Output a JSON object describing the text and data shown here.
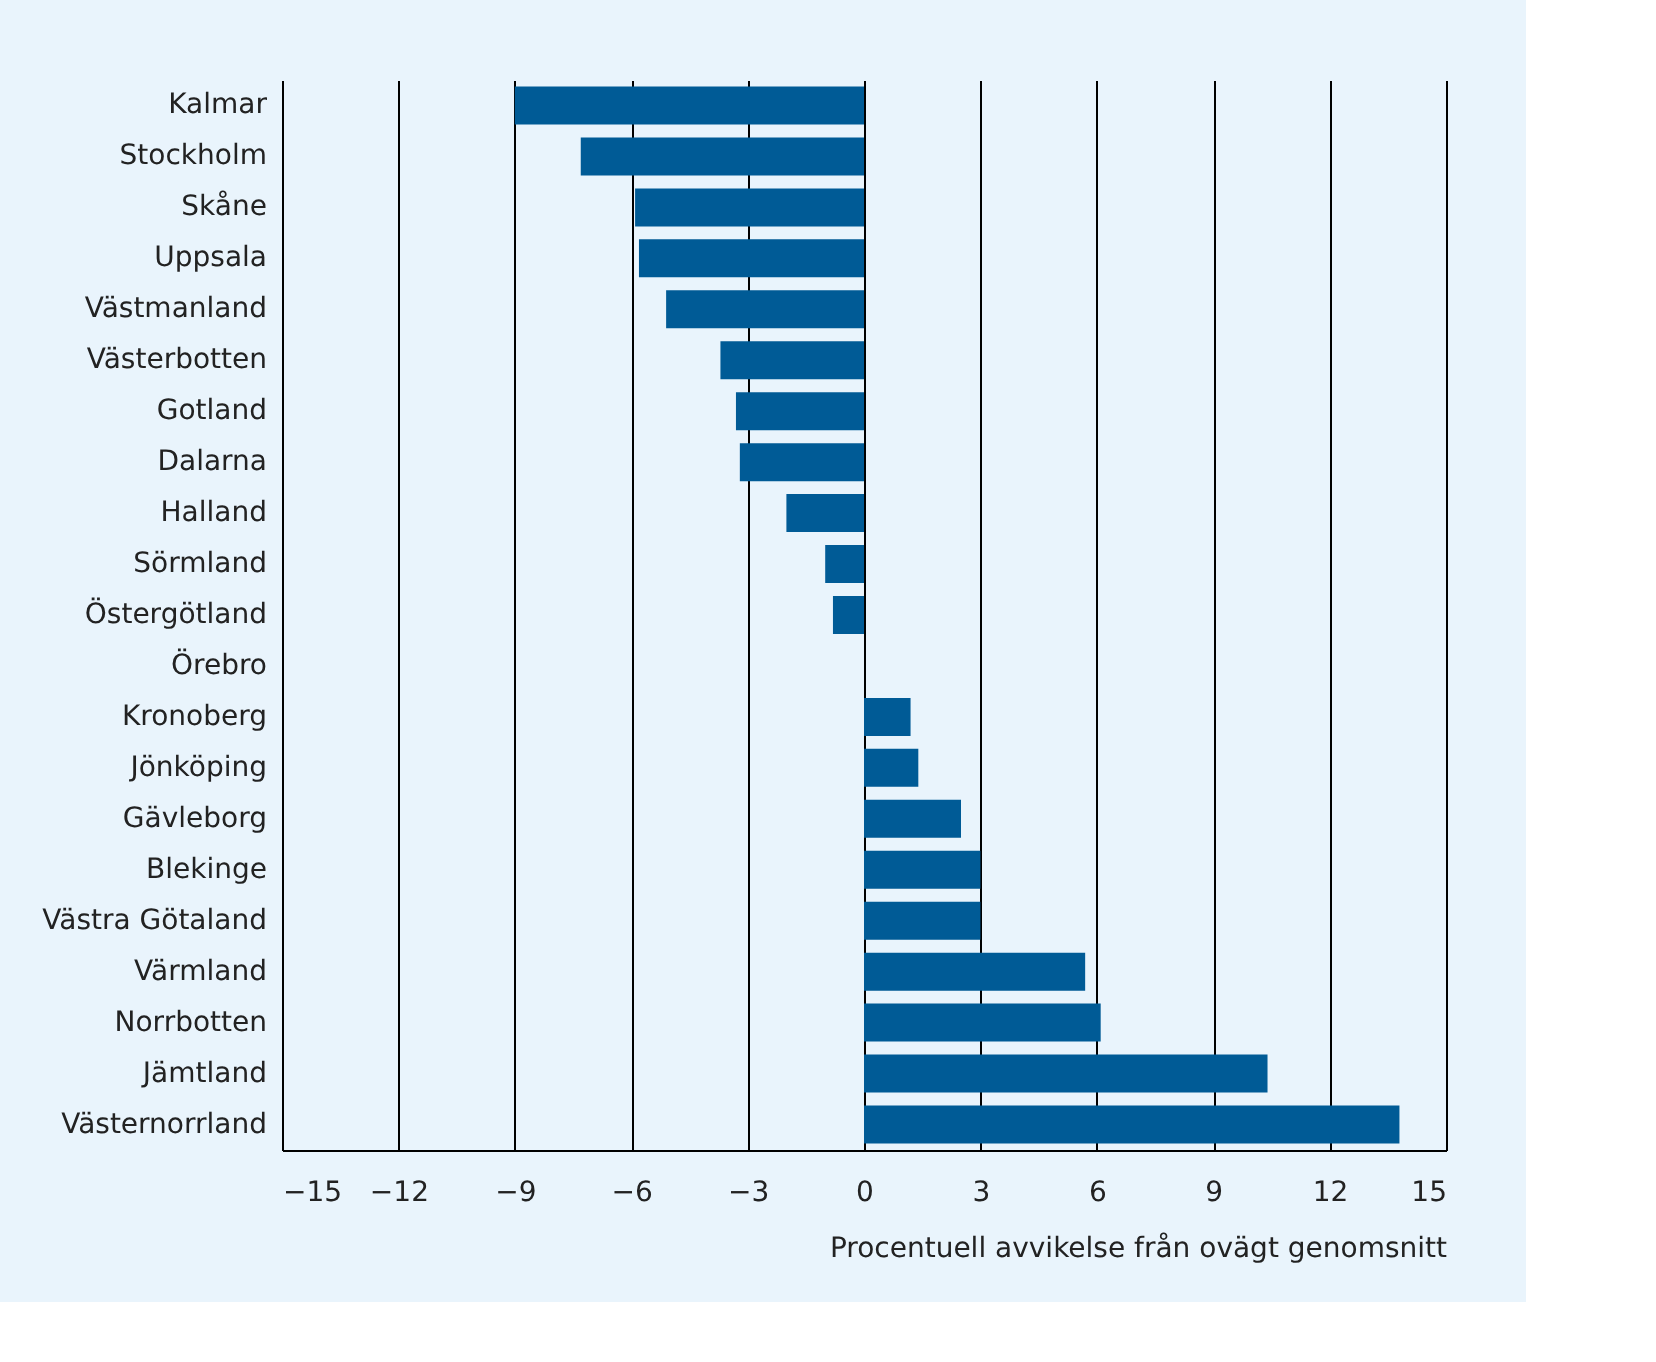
{
  "chart_data": {
    "type": "bar",
    "orientation": "horizontal",
    "categories": [
      "Kalmar",
      "Stockholm",
      "Skåne",
      "Uppsala",
      "Västmanland",
      "Västerbotten",
      "Gotland",
      "Dalarna",
      "Halland",
      "Sörmland",
      "Östergötland",
      "Örebro",
      "Kronoberg",
      "Jönköping",
      "Gävleborg",
      "Blekinge",
      "Västra Götaland",
      "Värmland",
      "Norrbotten",
      "Jämtland",
      "Västernorrland"
    ],
    "values": [
      -9.0,
      -7.3,
      -5.9,
      -5.8,
      -5.1,
      -3.7,
      -3.3,
      -3.2,
      -2.0,
      -1.0,
      -0.8,
      0,
      1.2,
      1.4,
      2.5,
      3.0,
      3.0,
      5.7,
      6.1,
      10.4,
      13.8
    ],
    "color": "#005b96",
    "xlabel": "Procentuell avvikelse från ovägt genomsnitt",
    "xlim": [
      -15,
      15
    ],
    "xticks": [
      -15,
      -12,
      -9,
      -6,
      -3,
      0,
      3,
      6,
      9,
      12,
      15
    ],
    "grid": "x"
  }
}
